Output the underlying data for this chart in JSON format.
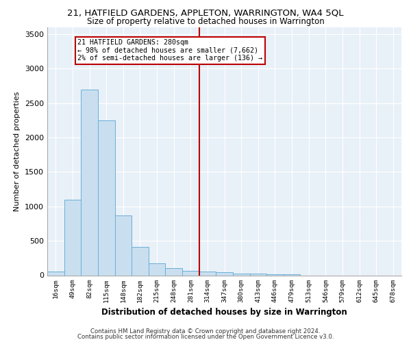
{
  "title": "21, HATFIELD GARDENS, APPLETON, WARRINGTON, WA4 5QL",
  "subtitle": "Size of property relative to detached houses in Warrington",
  "xlabel": "Distribution of detached houses by size in Warrington",
  "ylabel": "Number of detached properties",
  "bar_color": "#c9dff0",
  "bar_edge_color": "#6aaed6",
  "background_color": "#e8f0f8",
  "grid_color": "#d0dbe8",
  "categories": [
    "16sqm",
    "49sqm",
    "82sqm",
    "115sqm",
    "148sqm",
    "182sqm",
    "215sqm",
    "248sqm",
    "281sqm",
    "314sqm",
    "347sqm",
    "380sqm",
    "413sqm",
    "446sqm",
    "479sqm",
    "513sqm",
    "546sqm",
    "579sqm",
    "612sqm",
    "645sqm",
    "678sqm"
  ],
  "values": [
    55,
    1100,
    2700,
    2250,
    870,
    415,
    170,
    100,
    65,
    50,
    40,
    25,
    20,
    15,
    10,
    0,
    0,
    0,
    0,
    0,
    0
  ],
  "ylim": [
    0,
    3600
  ],
  "yticks": [
    0,
    500,
    1000,
    1500,
    2000,
    2500,
    3000,
    3500
  ],
  "property_line_x": 8.5,
  "annotation_line1": "21 HATFIELD GARDENS: 280sqm",
  "annotation_line2": "← 98% of detached houses are smaller (7,662)",
  "annotation_line3": "2% of semi-detached houses are larger (136) →",
  "annotation_box_color": "#ffffff",
  "annotation_box_edge": "#bb0000",
  "property_line_color": "#bb0000",
  "footer_line1": "Contains HM Land Registry data © Crown copyright and database right 2024.",
  "footer_line2": "Contains public sector information licensed under the Open Government Licence v3.0."
}
